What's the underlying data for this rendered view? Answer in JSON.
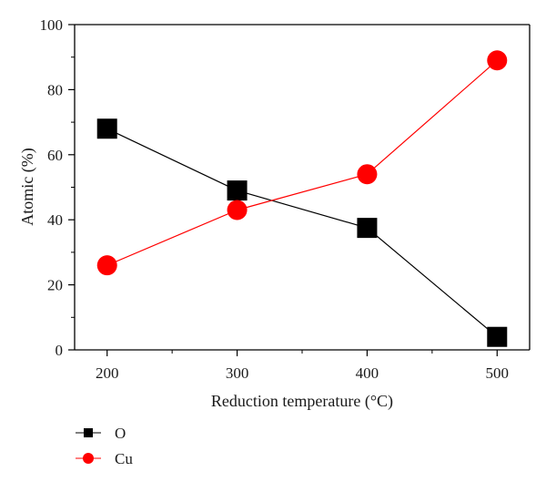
{
  "chart_data": {
    "type": "line",
    "xlabel": "Reduction temperature (°C)",
    "ylabel": "Atomic (%)",
    "x": [
      200,
      300,
      400,
      500
    ],
    "x_ticks": [
      "200",
      "300",
      "400",
      "500"
    ],
    "y_ticks": [
      "0",
      "20",
      "40",
      "60",
      "80",
      "100"
    ],
    "xlim": [
      175,
      525
    ],
    "ylim": [
      0,
      100
    ],
    "grid": false,
    "legend_position": "bottom-left",
    "series": [
      {
        "name": "O",
        "marker": "square",
        "color": "#000000",
        "values": [
          68,
          49,
          37.5,
          4
        ]
      },
      {
        "name": "Cu",
        "marker": "circle",
        "color": "#ff0000",
        "values": [
          26,
          43,
          54,
          89
        ]
      }
    ]
  }
}
